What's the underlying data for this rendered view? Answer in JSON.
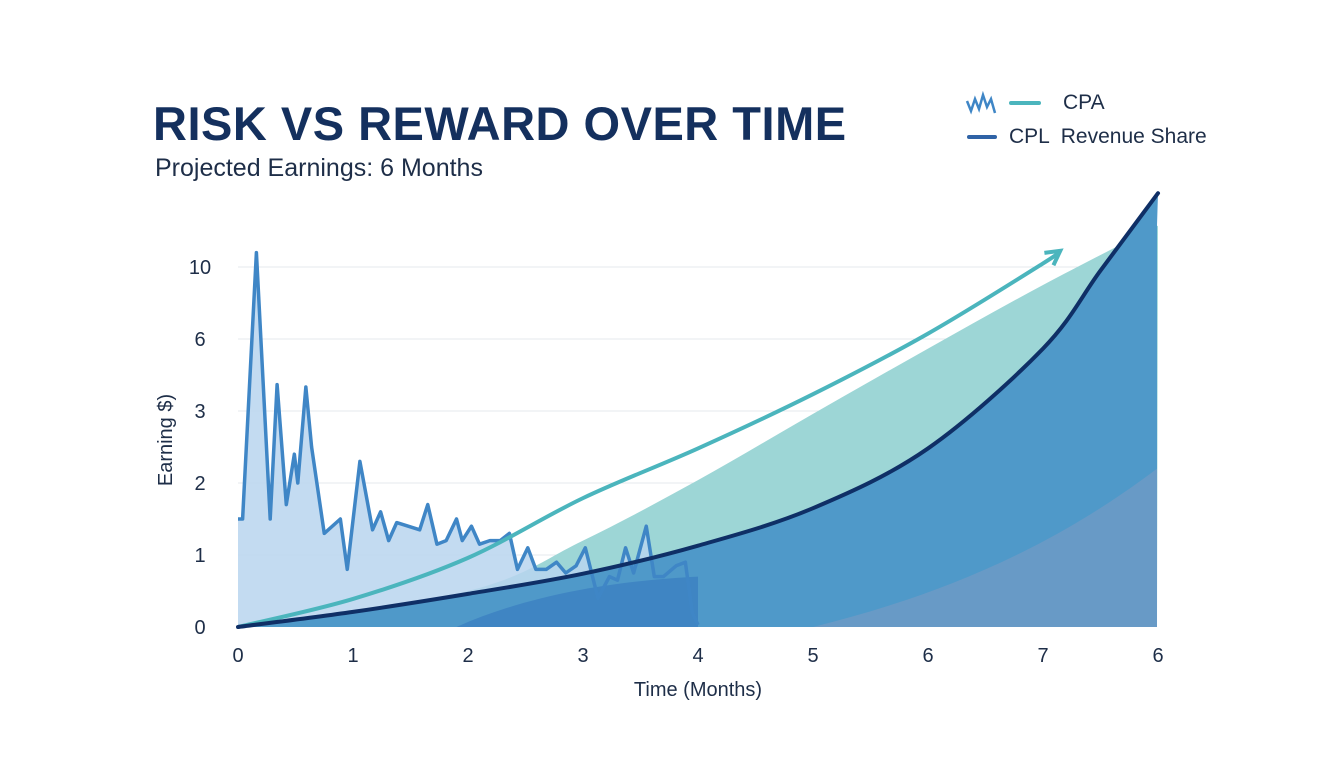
{
  "chart_data": {
    "type": "area",
    "title": "RISK VS REWARD OVER TIME",
    "subtitle": "Projected Earnings: 6 Months",
    "xlabel": "Time (Months)",
    "ylabel": "Earning $)",
    "x_tick_labels": [
      "0",
      "1",
      "2",
      "3",
      "4",
      "5",
      "6",
      "7",
      "6"
    ],
    "y_tick_labels": [
      "0",
      "1",
      "2",
      "3",
      "6",
      "10"
    ],
    "y_tick_values": [
      0,
      1,
      2,
      3,
      6,
      10
    ],
    "grid": "horizontal",
    "legend_placement": "top-right",
    "legend": [
      {
        "icon": "volatile-zigzag-icon",
        "label": "",
        "color": "#3f86c6"
      },
      {
        "icon": "line",
        "label": "CPA",
        "color": "#4bb5bd"
      },
      {
        "icon": "line",
        "label": "CPL  Revenue Share",
        "color": "#2f63a6"
      }
    ],
    "series": [
      {
        "name": "CPL",
        "style": "volatile-line-with-fill",
        "color": "#3f86c6",
        "fill": "#b8d5ee",
        "x": [
          0,
          0.04,
          0.16,
          0.28,
          0.34,
          0.42,
          0.49,
          0.52,
          0.59,
          0.64,
          0.75,
          0.89,
          0.95,
          1.06,
          1.17,
          1.24,
          1.31,
          1.38,
          1.58,
          1.65,
          1.73,
          1.81,
          1.9,
          1.95,
          2.03,
          2.1,
          2.19,
          2.28,
          2.36,
          2.43,
          2.52,
          2.59,
          2.68,
          2.77,
          2.85,
          2.94,
          3.02,
          3.13,
          3.23,
          3.3,
          3.37,
          3.44,
          3.55,
          3.62,
          3.7,
          3.81,
          3.89,
          3.95,
          4.0
        ],
        "y": [
          1.5,
          1.5,
          10.8,
          1.5,
          4.1,
          1.7,
          2.4,
          2.0,
          4.0,
          2.5,
          1.3,
          1.5,
          0.8,
          2.3,
          1.35,
          1.6,
          1.2,
          1.45,
          1.35,
          1.7,
          1.15,
          1.2,
          1.5,
          1.2,
          1.4,
          1.15,
          1.2,
          1.2,
          1.3,
          0.8,
          1.1,
          0.8,
          0.8,
          0.9,
          0.75,
          0.85,
          1.1,
          0.4,
          0.7,
          0.65,
          1.1,
          0.75,
          1.4,
          0.7,
          0.7,
          0.85,
          0.9,
          0.2,
          0.03
        ]
      },
      {
        "name": "CPA",
        "style": "line-with-arrow",
        "color": "#4bb5bd",
        "x": [
          0,
          1,
          2,
          3,
          4,
          5,
          6,
          7,
          7.15
        ],
        "y": [
          0,
          0.39,
          0.96,
          1.79,
          2.48,
          3.7,
          6.3,
          10.2,
          10.9
        ]
      },
      {
        "name": "Revenue Share",
        "style": "line",
        "color": "#0f2f66",
        "fill": "#4f99c9",
        "x": [
          0,
          1,
          2,
          3,
          4,
          5,
          6,
          7,
          7.5,
          8.0
        ],
        "y": [
          0,
          0.21,
          0.46,
          0.74,
          1.13,
          1.65,
          2.48,
          5.6,
          9.8,
          14.1
        ]
      },
      {
        "style": "area",
        "color": "#9dd6d6",
        "x": [
          0,
          2,
          3,
          4,
          5,
          6,
          7,
          8
        ],
        "y": [
          0,
          0.5,
          1.2,
          2.04,
          2.96,
          5.6,
          9.0,
          12.3
        ]
      }
    ]
  }
}
